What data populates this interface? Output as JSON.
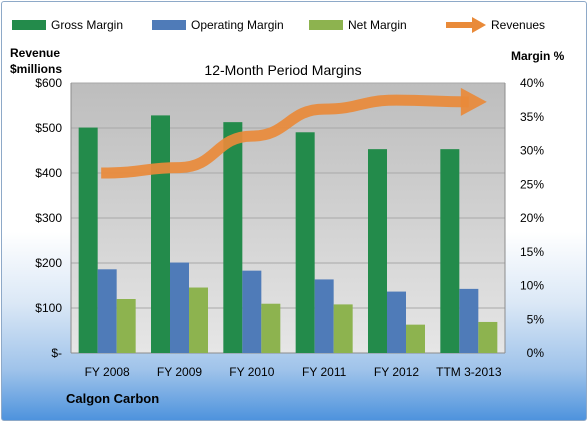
{
  "legend": {
    "items": [
      {
        "label": "Gross Margin",
        "color": "#238b4b",
        "kind": "bar"
      },
      {
        "label": "Operating Margin",
        "color": "#4f7bb8",
        "kind": "bar"
      },
      {
        "label": "Net Margin",
        "color": "#8db34f",
        "kind": "bar"
      },
      {
        "label": "Revenues",
        "color": "#e98a39",
        "kind": "arrow"
      }
    ]
  },
  "chart_data": {
    "type": "bar",
    "title": "12-Month Period Margins",
    "company": "Calgon Carbon",
    "left_axis_title": [
      "Revenue",
      "$millions"
    ],
    "right_axis_title": "Margin %",
    "left_axis": {
      "min": 0,
      "max": 600,
      "step": 100,
      "tick_labels": [
        "$-",
        "$100",
        "$200",
        "$300",
        "$400",
        "$500",
        "$600"
      ]
    },
    "right_axis": {
      "min": 0,
      "max": 40,
      "step": 5,
      "tick_labels": [
        "0%",
        "5%",
        "10%",
        "15%",
        "20%",
        "25%",
        "30%",
        "35%",
        "40%"
      ]
    },
    "categories": [
      "FY 2008",
      "FY 2009",
      "FY 2010",
      "FY 2011",
      "FY 2012",
      "TTM 3-2013"
    ],
    "series": [
      {
        "name": "Gross Margin",
        "axis": "right",
        "color": "#238b4b",
        "values": [
          33.4,
          35.2,
          34.2,
          32.7,
          30.2,
          30.2
        ]
      },
      {
        "name": "Operating Margin",
        "axis": "right",
        "color": "#4f7bb8",
        "values": [
          12.4,
          13.4,
          12.2,
          10.9,
          9.1,
          9.5
        ]
      },
      {
        "name": "Net Margin",
        "axis": "right",
        "color": "#8db34f",
        "values": [
          8.0,
          9.7,
          7.3,
          7.2,
          4.2,
          4.6
        ]
      },
      {
        "name": "Revenues",
        "axis": "left",
        "color": "#e98a39",
        "style": "arrow",
        "values": [
          400,
          412,
          482,
          542,
          562,
          558
        ]
      }
    ],
    "grid": true,
    "legend_position": "top"
  },
  "colors": {
    "plot_background": "#c7c7c7",
    "gridline": "#a8a8a8",
    "background_gradient_bottom": "#4e93dd"
  }
}
